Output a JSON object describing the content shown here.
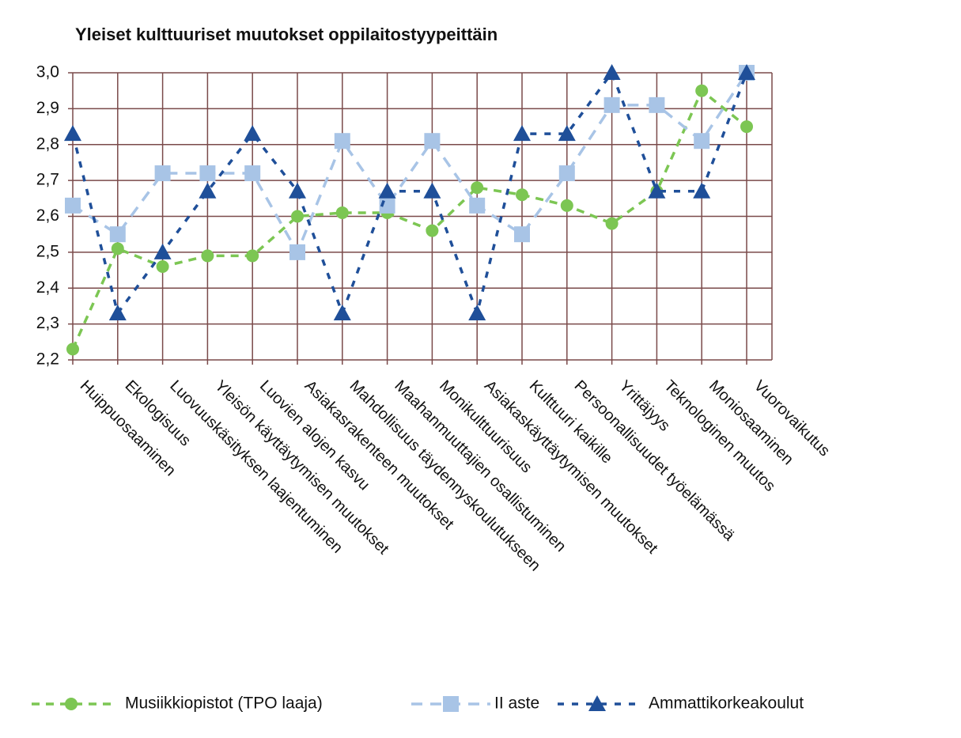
{
  "chart_data": {
    "type": "line",
    "title": "Yleiset kulttuuriset muutokset oppilaitostyypeittäin",
    "categories": [
      "Huippuosaaminen",
      "Ekologisuus",
      "Luovuuskäsityksen laajentuminen",
      "Yleisön käyttäytymisen muutokset",
      "Luovien alojen kasvu",
      "Asiakasrakenteen muutokset",
      "Mahdollisuus täydennyskoulutukseen",
      "Maahanmuuttajien osallistuminen",
      "Monikulttuurisuus",
      "Asiakaskäyttäytymisen muutokset",
      "Kulttuuri kaikille",
      "Persoonallisuudet työelämässä",
      "Yrittäjyys",
      "Teknologinen muutos",
      "Moniosaaminen",
      "Vuorovaikutus"
    ],
    "series": [
      {
        "name": "Musiikkiopistot (TPO laaja)",
        "color": "#7cc653",
        "marker": "circle",
        "values": [
          2.23,
          2.51,
          2.46,
          2.49,
          2.49,
          2.6,
          2.61,
          2.61,
          2.56,
          2.68,
          2.66,
          2.63,
          2.58,
          2.67,
          2.95,
          2.85
        ]
      },
      {
        "name": "II aste",
        "color": "#a8c4e6",
        "marker": "square",
        "values": [
          2.63,
          2.55,
          2.72,
          2.72,
          2.72,
          2.5,
          2.81,
          2.63,
          2.81,
          2.63,
          2.55,
          2.72,
          2.91,
          2.91,
          2.81,
          3.0
        ]
      },
      {
        "name": "Ammattikorkeakoulut",
        "color": "#1f4f99",
        "marker": "triangle",
        "values": [
          2.83,
          2.33,
          2.5,
          2.67,
          2.83,
          2.67,
          2.33,
          2.67,
          2.67,
          2.33,
          2.83,
          2.83,
          3.0,
          2.67,
          2.67,
          3.0
        ]
      }
    ],
    "ylim": [
      2.2,
      3.0
    ],
    "yticks": [
      {
        "value": 2.2,
        "label": "2,2"
      },
      {
        "value": 2.3,
        "label": "2,3"
      },
      {
        "value": 2.4,
        "label": "2,4"
      },
      {
        "value": 2.5,
        "label": "2,5"
      },
      {
        "value": 2.6,
        "label": "2,6"
      },
      {
        "value": 2.7,
        "label": "2,7"
      },
      {
        "value": 2.8,
        "label": "2,8"
      },
      {
        "value": 2.9,
        "label": "2,9"
      },
      {
        "value": 3.0,
        "label": "3,0"
      }
    ],
    "grid": true,
    "legend": "bottom"
  }
}
